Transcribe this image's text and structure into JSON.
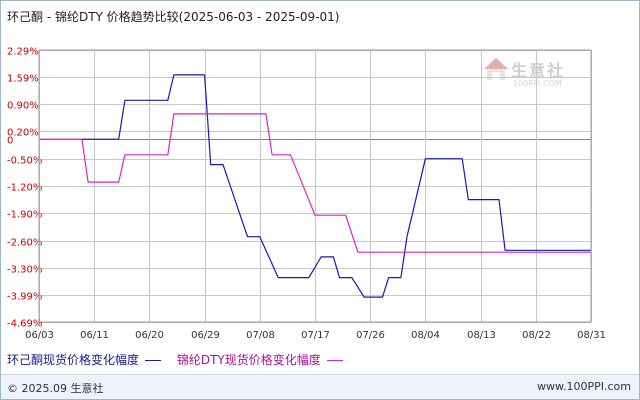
{
  "header": {
    "title": "环己酮 - 锦纶DTY 价格趋势比较(2025-06-03 - 2025-09-01)"
  },
  "watermark": {
    "name": "生意社",
    "url": "100PPI.COM"
  },
  "footer": {
    "copyright": "© 2025.09 生意社",
    "url": "www.100PPI.com"
  },
  "colors": {
    "series1": "#1a1ab0",
    "series2": "#dd22cc",
    "grid": "#c8c8c8",
    "zero_line": "#808080",
    "axis_label": "#cc0000"
  },
  "chart_data": {
    "type": "line",
    "title": "环己酮 - 锦纶DTY 价格趋势比较(2025-06-03 - 2025-09-01)",
    "xlabel": "",
    "ylabel": "",
    "x_ticks": [
      "06/03",
      "06/11",
      "06/20",
      "06/29",
      "07/08",
      "07/17",
      "07/26",
      "08/04",
      "08/13",
      "08/22",
      "08/31"
    ],
    "y_ticks": [
      "2.29%",
      "1.59%",
      "0.90%",
      "0.20%",
      "0",
      "-0.50%",
      "-1.20%",
      "-1.90%",
      "-2.60%",
      "-3.30%",
      "-3.99%",
      "-4.69%"
    ],
    "y_tick_values": [
      2.29,
      1.59,
      0.9,
      0.2,
      0,
      -0.5,
      -1.2,
      -1.9,
      -2.6,
      -3.3,
      -3.99,
      -4.69
    ],
    "ylim": [
      -4.69,
      2.29
    ],
    "xlim": [
      "2025-06-03",
      "2025-09-01"
    ],
    "grid": true,
    "legend_position": "bottom-left",
    "series": [
      {
        "name": "环己酮现货价格变化幅度",
        "color": "#1a1ab0",
        "points": [
          [
            "2025-06-10",
            0
          ],
          [
            "2025-06-16",
            0
          ],
          [
            "2025-06-17",
            1.0
          ],
          [
            "2025-06-24",
            1.0
          ],
          [
            "2025-06-25",
            1.65
          ],
          [
            "2025-06-30",
            1.65
          ],
          [
            "2025-07-01",
            -0.65
          ],
          [
            "2025-07-03",
            -0.65
          ],
          [
            "2025-07-07",
            -2.5
          ],
          [
            "2025-07-09",
            -2.5
          ],
          [
            "2025-07-12",
            -3.55
          ],
          [
            "2025-07-17",
            -3.55
          ],
          [
            "2025-07-19",
            -3.02
          ],
          [
            "2025-07-21",
            -3.02
          ],
          [
            "2025-07-22",
            -3.55
          ],
          [
            "2025-07-24",
            -3.55
          ],
          [
            "2025-07-26",
            -4.05
          ],
          [
            "2025-07-29",
            -4.05
          ],
          [
            "2025-07-30",
            -3.55
          ],
          [
            "2025-08-01",
            -3.55
          ],
          [
            "2025-08-02",
            -2.5
          ],
          [
            "2025-08-05",
            -0.5
          ],
          [
            "2025-08-11",
            -0.5
          ],
          [
            "2025-08-12",
            -1.55
          ],
          [
            "2025-08-17",
            -1.55
          ],
          [
            "2025-08-18",
            -2.85
          ],
          [
            "2025-09-01",
            -2.85
          ]
        ]
      },
      {
        "name": "锦纶DTY现货价格变化幅度",
        "color": "#dd22cc",
        "points": [
          [
            "2025-06-03",
            0
          ],
          [
            "2025-06-10",
            0
          ],
          [
            "2025-06-11",
            -1.1
          ],
          [
            "2025-06-16",
            -1.1
          ],
          [
            "2025-06-17",
            -0.4
          ],
          [
            "2025-06-24",
            -0.4
          ],
          [
            "2025-06-25",
            0.65
          ],
          [
            "2025-07-10",
            0.65
          ],
          [
            "2025-07-11",
            -0.4
          ],
          [
            "2025-07-14",
            -0.4
          ],
          [
            "2025-07-18",
            -1.95
          ],
          [
            "2025-07-23",
            -1.95
          ],
          [
            "2025-07-25",
            -2.9
          ],
          [
            "2025-09-01",
            -2.9
          ]
        ]
      }
    ]
  }
}
